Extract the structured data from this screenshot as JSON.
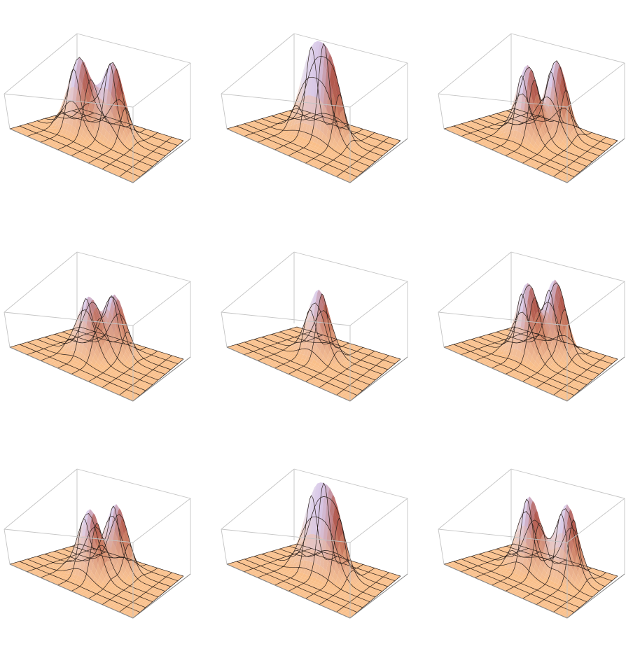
{
  "figure": {
    "rows": 3,
    "cols": 3,
    "surface_color": "#f7b77f",
    "peak_highlight_color": "#d8c8e8",
    "peak_shadow_color": "#b25a4e",
    "box_edge_color": "#c4c4c4",
    "mesh_color": "#2a1f1a"
  },
  "chart_data": [
    {
      "type": "surface3d",
      "panel": 1,
      "peaks": [
        {
          "x": -0.35,
          "y": 0.0,
          "height": 1.0
        },
        {
          "x": 0.05,
          "y": 0.25,
          "height": 1.0
        }
      ],
      "grid": true,
      "mesh_lines": 8
    },
    {
      "type": "surface3d",
      "panel": 2,
      "peaks": [
        {
          "x": -0.2,
          "y": 0.15,
          "height": 1.0
        },
        {
          "x": 0.1,
          "y": 0.15,
          "height": 1.0
        }
      ],
      "grid": true,
      "mesh_lines": 8
    },
    {
      "type": "surface3d",
      "panel": 3,
      "peaks": [
        {
          "x": 0.1,
          "y": 0.45,
          "height": 1.0
        },
        {
          "x": -0.1,
          "y": -0.05,
          "height": 1.0
        }
      ],
      "grid": true,
      "mesh_lines": 8
    },
    {
      "type": "surface3d",
      "panel": 4,
      "peaks": [
        {
          "x": 0.05,
          "y": 0.3,
          "height": 0.8
        },
        {
          "x": -0.15,
          "y": -0.1,
          "height": 0.8
        }
      ],
      "grid": true,
      "mesh_lines": 8
    },
    {
      "type": "surface3d",
      "panel": 5,
      "peaks": [
        {
          "x": -0.05,
          "y": 0.1,
          "height": 0.9
        }
      ],
      "grid": true,
      "mesh_lines": 8
    },
    {
      "type": "surface3d",
      "panel": 6,
      "peaks": [
        {
          "x": 0.1,
          "y": 0.4,
          "height": 1.0
        },
        {
          "x": -0.1,
          "y": -0.05,
          "height": 1.0
        }
      ],
      "grid": true,
      "mesh_lines": 8
    },
    {
      "type": "surface3d",
      "panel": 7,
      "peaks": [
        {
          "x": 0.05,
          "y": 0.35,
          "height": 0.9
        },
        {
          "x": -0.1,
          "y": -0.15,
          "height": 0.9
        }
      ],
      "grid": true,
      "mesh_lines": 8
    },
    {
      "type": "surface3d",
      "panel": 8,
      "peaks": [
        {
          "x": -0.15,
          "y": 0.15,
          "height": 0.95
        },
        {
          "x": 0.15,
          "y": 0.15,
          "height": 0.95
        }
      ],
      "grid": true,
      "mesh_lines": 8
    },
    {
      "type": "surface3d",
      "panel": 9,
      "peaks": [
        {
          "x": -0.15,
          "y": 0.1,
          "height": 1.0
        },
        {
          "x": 0.35,
          "y": 0.3,
          "height": 1.0
        }
      ],
      "grid": true,
      "mesh_lines": 8
    }
  ]
}
